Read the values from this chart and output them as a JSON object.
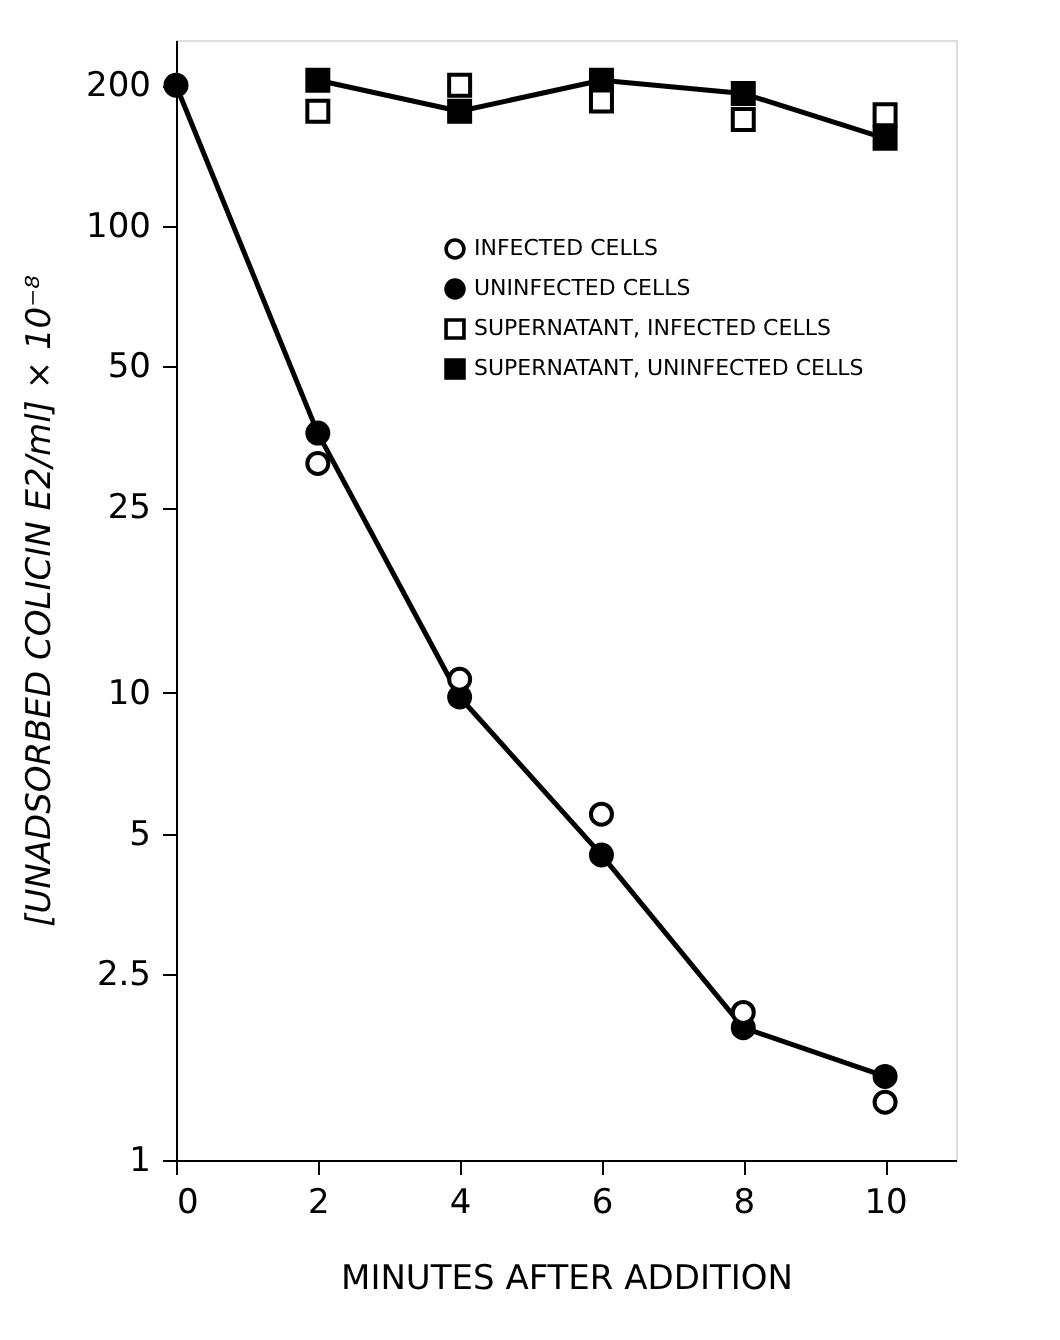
{
  "chart_data": {
    "type": "scatter",
    "xlabel": "MINUTES AFTER ADDITION",
    "ylabel": "[UNADSORBED COLICIN E2/ml] × 10⁻⁸",
    "xlim": [
      0,
      11
    ],
    "xticks": [
      0,
      2,
      4,
      6,
      8,
      10
    ],
    "ylim": [
      1,
      250
    ],
    "log": "y",
    "yticks": [
      1,
      2.5,
      5,
      10,
      25,
      50,
      100,
      200
    ],
    "legend": "top right",
    "grid": false,
    "series": [
      {
        "name": "INFECTED CELLS",
        "type": "scatter",
        "marker": "circle",
        "color": "#ffffff",
        "x": [
          2,
          4,
          6,
          8,
          10
        ],
        "values": [
          31,
          10.7,
          5.5,
          2.07,
          1.33
        ]
      },
      {
        "name": "UNINFECTED CELLS",
        "type": "line",
        "marker": "circle",
        "color": "#000000",
        "x": [
          0,
          2,
          4,
          6,
          8,
          10
        ],
        "values": [
          200,
          36,
          9.8,
          4.5,
          1.92,
          1.51
        ],
        "line_style": "solid"
      },
      {
        "name": "SUPERNATANT, INFECTED CELLS",
        "type": "scatter",
        "marker": "square",
        "color": "#ffffff",
        "x": [
          2,
          4,
          6,
          8,
          10
        ],
        "values": [
          176,
          200,
          185,
          169,
          173
        ]
      },
      {
        "name": "SUPERNATANT, UNINFECTED CELLS",
        "type": "line",
        "marker": "square",
        "color": "#000000",
        "x": [
          2,
          4,
          6,
          8,
          10
        ],
        "values": [
          205,
          176,
          205,
          192,
          154
        ],
        "line_style": "solid"
      }
    ]
  }
}
